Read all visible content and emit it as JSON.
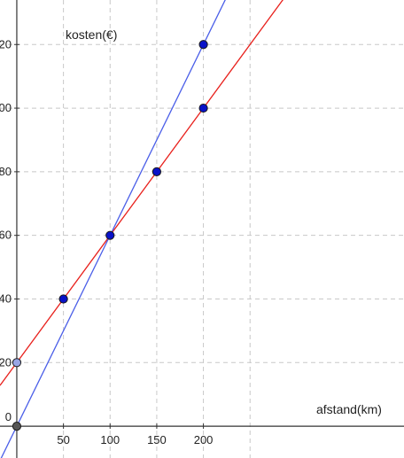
{
  "chart_data": {
    "type": "line",
    "title": "",
    "xlabel": "afstand(km)",
    "ylabel": "kosten(€)",
    "xlim": [
      -18,
      415
    ],
    "ylim": [
      -10,
      134
    ],
    "x_ticks": [
      50,
      100,
      150,
      200
    ],
    "y_ticks": [
      0,
      20,
      40,
      60,
      80,
      100,
      120
    ],
    "grid_x": [
      50,
      100,
      150,
      200,
      250
    ],
    "grid_y": [
      20,
      40,
      60,
      80,
      100,
      120
    ],
    "grid": true,
    "series": [
      {
        "color": "#e8201c",
        "line": {
          "slope": 0.4,
          "intercept": 20
        },
        "points": [
          {
            "x": 0,
            "y": 20
          },
          {
            "x": 50,
            "y": 40
          },
          {
            "x": 100,
            "y": 60
          },
          {
            "x": 150,
            "y": 80
          },
          {
            "x": 200,
            "y": 100
          }
        ]
      },
      {
        "color": "#4a5ee8",
        "line": {
          "slope": 0.6,
          "intercept": 0
        },
        "points": [
          {
            "x": 0,
            "y": 0
          },
          {
            "x": 100,
            "y": 60
          },
          {
            "x": 200,
            "y": 120
          }
        ]
      }
    ],
    "point_colors": {
      "series_point": "#0a12c8",
      "intercept_20": "#9aa6e6",
      "origin": "#555555"
    }
  }
}
